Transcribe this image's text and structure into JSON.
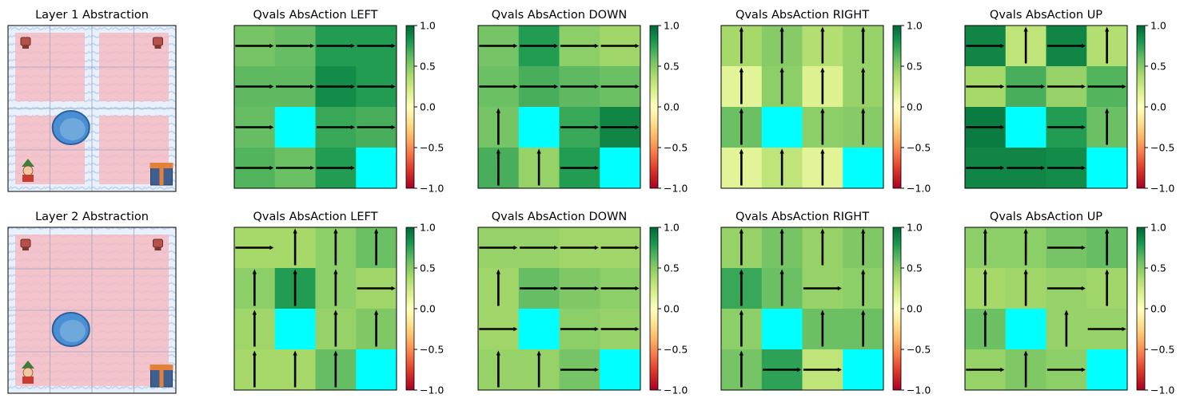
{
  "figure": {
    "colormap": "RdYlGn",
    "hole_color": "#00ffff",
    "arrow_color": "#000000",
    "colorbar": {
      "range": [
        -1.0,
        1.0
      ],
      "ticks": [
        "1.0",
        "0.5",
        "0.0",
        "−0.5",
        "−1.0"
      ]
    }
  },
  "rows": [
    {
      "abstraction": {
        "title": "Layer 1 Abstraction",
        "grid_size": 4,
        "pink_blocks": [
          [
            0,
            0,
            2,
            2
          ],
          [
            0,
            2,
            2,
            2
          ],
          [
            2,
            0,
            2,
            2
          ],
          [
            2,
            2,
            2,
            2
          ]
        ],
        "icons": [
          {
            "name": "stool-icon",
            "col": 0,
            "row": 0
          },
          {
            "name": "stool-icon",
            "col": 3,
            "row": 0
          },
          {
            "name": "ice-hole-icon",
            "col": 1,
            "row": 2
          },
          {
            "name": "elf-icon",
            "col": 0,
            "row": 3
          },
          {
            "name": "gift-icon",
            "col": 3,
            "row": 3
          }
        ]
      },
      "panels": [
        {
          "title": "Qvals AbsAction LEFT",
          "values": [
            [
              0.55,
              0.6,
              0.78,
              0.78
            ],
            [
              0.62,
              0.62,
              0.85,
              0.78
            ],
            [
              0.6,
              null,
              0.72,
              0.68
            ],
            [
              0.65,
              0.58,
              0.78,
              null
            ]
          ],
          "arrows": [
            [
              "h",
              "h",
              "h",
              "h"
            ],
            [
              "h",
              "h",
              "h",
              "h"
            ],
            [
              "h",
              null,
              "h",
              "h"
            ],
            [
              "h",
              "h",
              "h",
              null
            ]
          ]
        },
        {
          "title": "Qvals AbsAction DOWN",
          "values": [
            [
              0.55,
              0.78,
              0.48,
              0.42
            ],
            [
              0.58,
              0.68,
              0.62,
              0.58
            ],
            [
              0.55,
              null,
              0.72,
              0.88
            ],
            [
              0.68,
              0.45,
              0.78,
              null
            ]
          ],
          "arrows": [
            [
              "h",
              "h",
              "h",
              "h"
            ],
            [
              "h",
              "h",
              "h",
              "h"
            ],
            [
              "v",
              null,
              "h",
              "h"
            ],
            [
              "v",
              "v",
              "h",
              null
            ]
          ]
        },
        {
          "title": "Qvals AbsAction RIGHT",
          "values": [
            [
              0.4,
              0.5,
              0.35,
              0.45
            ],
            [
              0.15,
              0.48,
              0.18,
              0.45
            ],
            [
              0.58,
              null,
              0.48,
              0.5
            ],
            [
              0.15,
              0.3,
              0.15,
              null
            ]
          ],
          "arrows": [
            [
              "v",
              "v",
              "v",
              "v"
            ],
            [
              "v",
              "v",
              "v",
              "v"
            ],
            [
              "v",
              null,
              "v",
              "v"
            ],
            [
              "v",
              "v",
              "v",
              null
            ]
          ]
        },
        {
          "title": "Qvals AbsAction UP",
          "values": [
            [
              0.88,
              0.3,
              0.88,
              0.35
            ],
            [
              0.4,
              0.68,
              0.45,
              0.65
            ],
            [
              0.92,
              null,
              0.78,
              0.58
            ],
            [
              0.88,
              0.88,
              0.85,
              null
            ]
          ],
          "arrows": [
            [
              "h",
              "v",
              "h",
              "v"
            ],
            [
              "h",
              "h",
              "h",
              "h"
            ],
            [
              "h",
              null,
              "h",
              "v"
            ],
            [
              "h",
              "h",
              "h",
              null
            ]
          ]
        }
      ]
    },
    {
      "abstraction": {
        "title": "Layer 2 Abstraction",
        "grid_size": 4,
        "pink_blocks": [
          [
            0,
            0,
            4,
            4
          ]
        ],
        "icons": [
          {
            "name": "stool-icon",
            "col": 0,
            "row": 0
          },
          {
            "name": "stool-icon",
            "col": 3,
            "row": 0
          },
          {
            "name": "ice-hole-icon",
            "col": 1,
            "row": 2
          },
          {
            "name": "elf-icon",
            "col": 0,
            "row": 3
          },
          {
            "name": "gift-icon",
            "col": 3,
            "row": 3
          }
        ]
      },
      "panels": [
        {
          "title": "Qvals AbsAction LEFT",
          "values": [
            [
              0.4,
              0.4,
              0.48,
              0.58
            ],
            [
              0.48,
              0.78,
              0.48,
              0.42
            ],
            [
              0.42,
              null,
              0.45,
              0.52
            ],
            [
              0.4,
              0.4,
              0.6,
              null
            ]
          ],
          "arrows": [
            [
              "h",
              "v",
              "v",
              "v"
            ],
            [
              "v",
              "v",
              "v",
              "h"
            ],
            [
              "v",
              null,
              "v",
              "v"
            ],
            [
              "v",
              "v",
              "v",
              null
            ]
          ]
        },
        {
          "title": "Qvals AbsAction DOWN",
          "values": [
            [
              0.45,
              0.45,
              0.42,
              0.42
            ],
            [
              0.42,
              0.6,
              0.52,
              0.48
            ],
            [
              0.42,
              null,
              0.48,
              0.45
            ],
            [
              0.45,
              0.45,
              0.55,
              null
            ]
          ],
          "arrows": [
            [
              "h",
              "h",
              "h",
              "h"
            ],
            [
              "v",
              "h",
              "h",
              "h"
            ],
            [
              "h",
              null,
              "h",
              "h"
            ],
            [
              "v",
              "v",
              "h",
              null
            ]
          ]
        },
        {
          "title": "Qvals AbsAction RIGHT",
          "values": [
            [
              0.45,
              0.55,
              0.45,
              0.52
            ],
            [
              0.72,
              0.58,
              0.45,
              0.48
            ],
            [
              0.48,
              null,
              0.58,
              0.58
            ],
            [
              0.55,
              0.75,
              0.3,
              null
            ]
          ],
          "arrows": [
            [
              "v",
              "v",
              "v",
              "v"
            ],
            [
              "v",
              "v",
              "h",
              "v"
            ],
            [
              "v",
              null,
              "v",
              "v"
            ],
            [
              "v",
              "h",
              "h",
              null
            ]
          ]
        },
        {
          "title": "Qvals AbsAction UP",
          "values": [
            [
              0.48,
              0.48,
              0.55,
              0.6
            ],
            [
              0.4,
              0.42,
              0.45,
              0.42
            ],
            [
              0.58,
              null,
              0.45,
              0.45
            ],
            [
              0.45,
              0.52,
              0.48,
              null
            ]
          ],
          "arrows": [
            [
              "v",
              "v",
              "h",
              "v"
            ],
            [
              "v",
              "v",
              "h",
              "v"
            ],
            [
              "v",
              null,
              "v",
              "h"
            ],
            [
              "h",
              "v",
              "h",
              null
            ]
          ]
        }
      ]
    }
  ]
}
